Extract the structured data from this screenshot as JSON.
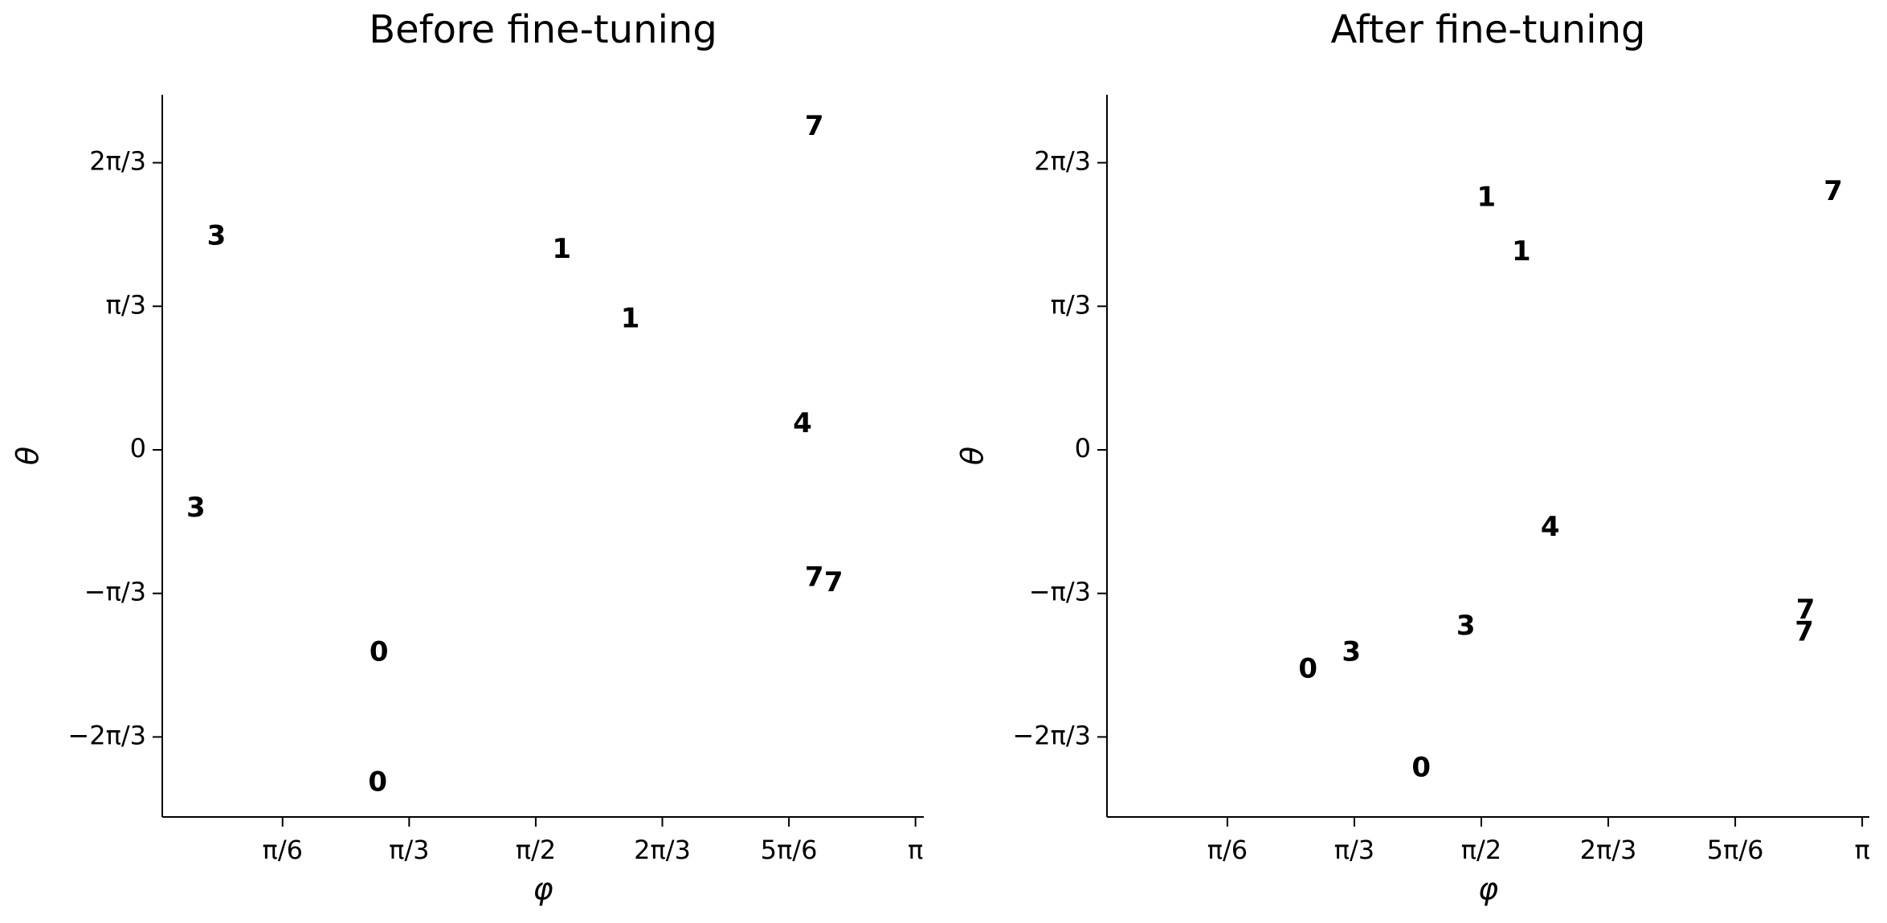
{
  "chart_data": [
    {
      "type": "scatter",
      "title": "Before fine-tuning",
      "xlabel": "φ",
      "ylabel": "θ",
      "xlim": [
        0.026,
        3.176
      ],
      "ylim": [
        -2.678,
        2.59
      ],
      "xticks": [
        {
          "value": 0.5236,
          "label": "π/6"
        },
        {
          "value": 1.0472,
          "label": "π/3"
        },
        {
          "value": 1.5708,
          "label": "π/2"
        },
        {
          "value": 2.0944,
          "label": "2π/3"
        },
        {
          "value": 2.618,
          "label": "5π/6"
        },
        {
          "value": 3.1416,
          "label": "π"
        }
      ],
      "yticks": [
        {
          "value": -2.0944,
          "label": "−2π/3"
        },
        {
          "value": -1.0472,
          "label": "−π/3"
        },
        0,
        {
          "value": 1.0472,
          "label": "π/3"
        },
        {
          "value": 2.0944,
          "label": "2π/3"
        }
      ],
      "series": [
        {
          "label": "0",
          "color": "#4a8fc4",
          "x": [
            0.922,
            0.917
          ],
          "y": [
            -1.484,
            -2.432
          ]
        },
        {
          "label": "1",
          "color": "#fa9a3c",
          "x": [
            1.678,
            1.962
          ],
          "y": [
            1.457,
            0.948
          ]
        },
        {
          "label": "3",
          "color": "#e0474f",
          "x": [
            0.25,
            0.165
          ],
          "y": [
            1.554,
            -0.43
          ]
        },
        {
          "label": "4",
          "color": "#a67fd0",
          "x": [
            2.674
          ],
          "y": [
            0.184
          ]
        },
        {
          "label": "7",
          "color": "#999999",
          "x": [
            2.723,
            2.723,
            2.803
          ],
          "y": [
            2.353,
            -0.939,
            -0.975
          ]
        }
      ]
    },
    {
      "type": "scatter",
      "title": "After fine-tuning",
      "xlabel": "φ",
      "ylabel": "θ",
      "xlim": [
        0.027,
        3.171
      ],
      "ylim": [
        -2.678,
        2.59
      ],
      "xticks": [
        {
          "value": 0.5236,
          "label": "π/6"
        },
        {
          "value": 1.0472,
          "label": "π/3"
        },
        {
          "value": 1.5708,
          "label": "π/2"
        },
        {
          "value": 2.0944,
          "label": "2π/3"
        },
        {
          "value": 2.618,
          "label": "5π/6"
        },
        {
          "value": 3.1416,
          "label": "π"
        }
      ],
      "yticks": [
        {
          "value": -2.0944,
          "label": "−2π/3"
        },
        {
          "value": -1.0472,
          "label": "−π/3"
        },
        0,
        {
          "value": 1.0472,
          "label": "π/3"
        },
        {
          "value": 2.0944,
          "label": "2π/3"
        }
      ],
      "series": [
        {
          "label": "0",
          "color": "#4a8fc4",
          "x": [
            0.856,
            1.323
          ],
          "y": [
            -1.607,
            -2.327
          ]
        },
        {
          "label": "1",
          "color": "#fa9a3c",
          "x": [
            1.592,
            1.736
          ],
          "y": [
            1.835,
            1.44
          ]
        },
        {
          "label": "3",
          "color": "#e0474f",
          "x": [
            1.507,
            1.035
          ],
          "y": [
            -1.291,
            -1.484
          ]
        },
        {
          "label": "4",
          "color": "#a67fd0",
          "x": [
            1.855
          ],
          "y": [
            -0.571
          ]
        },
        {
          "label": "7",
          "color": "#999999",
          "x": [
            3.022,
            2.908,
            2.903
          ],
          "y": [
            1.879,
            -1.176,
            -1.335
          ]
        }
      ]
    }
  ]
}
